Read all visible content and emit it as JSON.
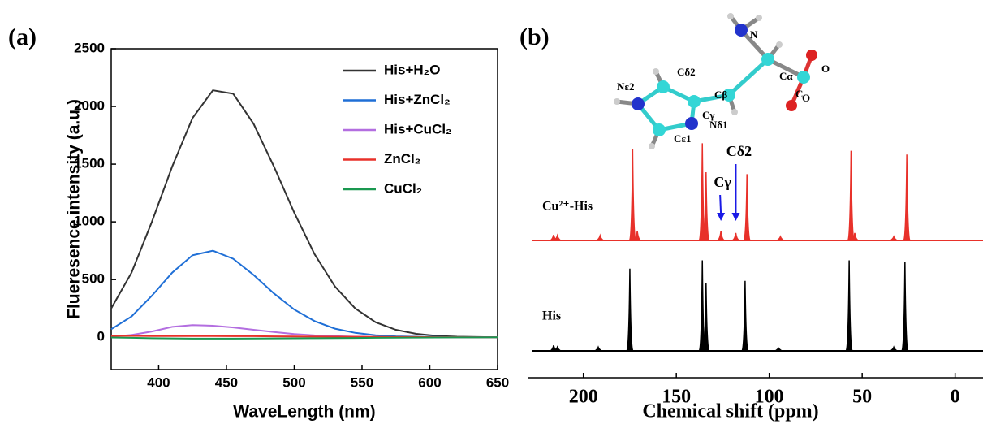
{
  "chart_data": [
    {
      "type": "line",
      "title": "(a)",
      "x_label": "WaveLength (nm)",
      "y_label": "Flueresence intensity (a.u.)",
      "xlim": [
        365,
        650
      ],
      "ylim": [
        -280,
        2500
      ],
      "xticks": [
        400,
        450,
        500,
        550,
        600,
        650
      ],
      "yticks": [
        0,
        500,
        1000,
        1500,
        2000,
        2500
      ],
      "legend": "upper right",
      "x": [
        365,
        380,
        395,
        410,
        425,
        440,
        455,
        470,
        485,
        500,
        515,
        530,
        545,
        560,
        575,
        590,
        605,
        620,
        635,
        650
      ],
      "series": [
        {
          "name": "His+H₂O",
          "color": "#333333",
          "values": [
            250,
            560,
            1000,
            1480,
            1900,
            2140,
            2110,
            1850,
            1480,
            1080,
            720,
            440,
            250,
            130,
            65,
            30,
            12,
            5,
            2,
            0
          ]
        },
        {
          "name": "His+ZnCl₂",
          "color": "#1f6fd6",
          "values": [
            70,
            180,
            360,
            560,
            710,
            750,
            680,
            540,
            380,
            240,
            140,
            75,
            38,
            18,
            8,
            4,
            2,
            1,
            0,
            0
          ]
        },
        {
          "name": "His+CuCl₂",
          "color": "#b36ee0",
          "values": [
            5,
            20,
            50,
            90,
            105,
            100,
            85,
            65,
            45,
            28,
            16,
            9,
            5,
            2,
            1,
            0,
            0,
            0,
            0,
            0
          ]
        },
        {
          "name": "ZnCl₂",
          "color": "#e8312a",
          "values": [
            12,
            12,
            11,
            11,
            10,
            10,
            9,
            9,
            8,
            7,
            6,
            5,
            4,
            3,
            2,
            2,
            1,
            1,
            0,
            0
          ]
        },
        {
          "name": "CuCl₂",
          "color": "#1a9850",
          "values": [
            -2,
            -5,
            -8,
            -10,
            -12,
            -12,
            -12,
            -11,
            -10,
            -9,
            -8,
            -7,
            -6,
            -5,
            -4,
            -3,
            -2,
            -1,
            -1,
            0
          ]
        }
      ]
    },
    {
      "type": "spectrum",
      "title": "(b)",
      "x_label": "Chemical shift (ppm)",
      "xlim": [
        230,
        -15
      ],
      "xticks": [
        200,
        150,
        100,
        50,
        0
      ],
      "series": [
        {
          "name": "Cu²⁺-His",
          "color": "#e8312a",
          "x": [
            216,
            214,
            191,
            173.5,
            171,
            136,
            134,
            126,
            118,
            112,
            94,
            56,
            54,
            33,
            26
          ],
          "values": [
            6,
            5,
            5,
            98,
            10,
            104,
            73,
            10,
            8,
            71,
            4,
            96,
            8,
            4,
            92
          ]
        },
        {
          "name": "His",
          "color": "#000000",
          "x": [
            216,
            214,
            192,
            175,
            136,
            134,
            113,
            95,
            57,
            33,
            27
          ],
          "values": [
            6,
            4,
            4,
            88,
            97,
            73,
            75,
            3,
            97,
            4,
            95
          ]
        }
      ],
      "annotations": [
        {
          "text": "Cγ",
          "x": 126
        },
        {
          "text": "Cδ2",
          "x": 118
        }
      ],
      "molecule": [
        "N",
        "Cα",
        "C",
        "O",
        "O",
        "Cβ",
        "Cδ2",
        "Nε2",
        "Cγ",
        "Nδ1",
        "Cε1"
      ]
    }
  ]
}
